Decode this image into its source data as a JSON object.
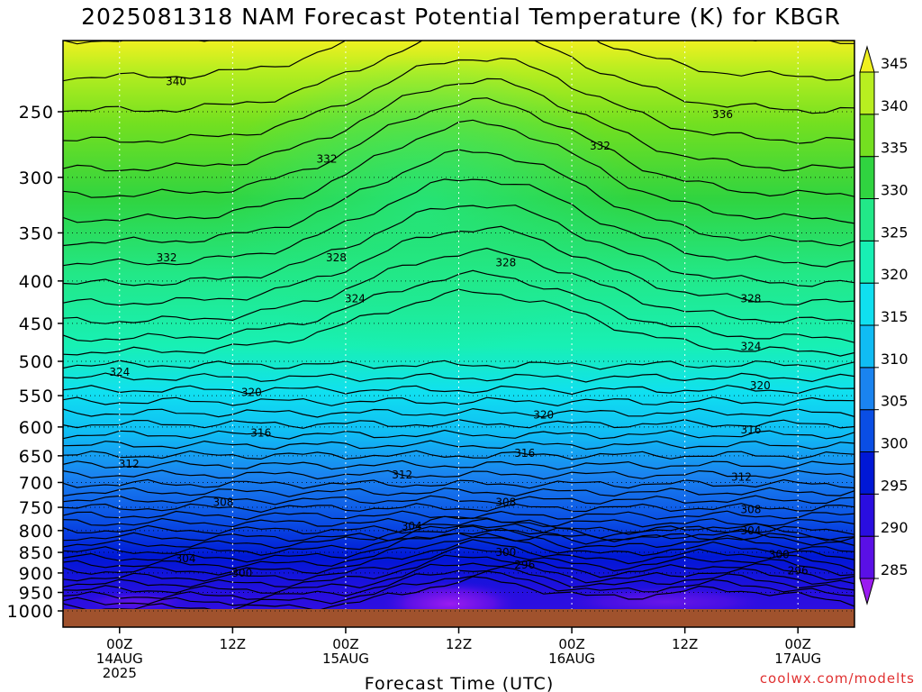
{
  "chart_data": {
    "type": "heatmap",
    "title": "2025081318 NAM Forecast Potential Temperature (K) for KBGR",
    "xlabel": "Forecast Time (UTC)",
    "ylabel": "",
    "y_ticks": [
      250,
      300,
      350,
      400,
      450,
      500,
      550,
      600,
      650,
      700,
      750,
      800,
      850,
      900,
      950,
      1000
    ],
    "x_ticks": [
      {
        "hour": 6,
        "line1": "00Z",
        "line2": "14AUG",
        "line3": "2025"
      },
      {
        "hour": 18,
        "line1": "12Z",
        "line2": "",
        "line3": ""
      },
      {
        "hour": 30,
        "line1": "00Z",
        "line2": "15AUG",
        "line3": ""
      },
      {
        "hour": 42,
        "line1": "12Z",
        "line2": "",
        "line3": ""
      },
      {
        "hour": 54,
        "line1": "00Z",
        "line2": "16AUG",
        "line3": ""
      },
      {
        "hour": 66,
        "line1": "12Z",
        "line2": "",
        "line3": ""
      },
      {
        "hour": 78,
        "line1": "00Z",
        "line2": "17AUG",
        "line3": ""
      }
    ],
    "xlim": [
      0,
      84
    ],
    "ylim": [
      1000,
      200
    ],
    "y_scale": "log-pressure",
    "grid": true,
    "colorbar": {
      "levels": [
        285,
        290,
        295,
        300,
        305,
        310,
        315,
        320,
        325,
        330,
        335,
        340,
        345
      ],
      "labels": [
        "285",
        "290",
        "295",
        "300",
        "305",
        "310",
        "315",
        "320",
        "325",
        "330",
        "335",
        "340",
        "345"
      ],
      "colors": [
        "#9a1cf0",
        "#5a10e6",
        "#2a0ee0",
        "#0018d6",
        "#0a4ee4",
        "#1a84f0",
        "#10bcf4",
        "#10e0f0",
        "#18f0b4",
        "#22e888",
        "#30d440",
        "#74e020",
        "#b8ee20",
        "#f0f020"
      ]
    },
    "contour_labels": [
      {
        "value": "340",
        "hour": 12,
        "pressure": 230
      },
      {
        "value": "336",
        "hour": 70,
        "pressure": 252
      },
      {
        "value": "332",
        "hour": 28,
        "pressure": 285
      },
      {
        "value": "332",
        "hour": 57,
        "pressure": 275
      },
      {
        "value": "332",
        "hour": 11,
        "pressure": 375
      },
      {
        "value": "328",
        "hour": 29,
        "pressure": 375
      },
      {
        "value": "328",
        "hour": 47,
        "pressure": 380
      },
      {
        "value": "328",
        "hour": 73,
        "pressure": 420
      },
      {
        "value": "324",
        "hour": 31,
        "pressure": 420
      },
      {
        "value": "324",
        "hour": 73,
        "pressure": 480
      },
      {
        "value": "324",
        "hour": 6,
        "pressure": 515
      },
      {
        "value": "320",
        "hour": 20,
        "pressure": 545
      },
      {
        "value": "320",
        "hour": 51,
        "pressure": 580
      },
      {
        "value": "320",
        "hour": 74,
        "pressure": 535
      },
      {
        "value": "316",
        "hour": 21,
        "pressure": 610
      },
      {
        "value": "316",
        "hour": 49,
        "pressure": 645
      },
      {
        "value": "316",
        "hour": 73,
        "pressure": 605
      },
      {
        "value": "312",
        "hour": 7,
        "pressure": 665
      },
      {
        "value": "312",
        "hour": 36,
        "pressure": 685
      },
      {
        "value": "312",
        "hour": 72,
        "pressure": 690
      },
      {
        "value": "308",
        "hour": 17,
        "pressure": 740
      },
      {
        "value": "308",
        "hour": 47,
        "pressure": 740
      },
      {
        "value": "308",
        "hour": 73,
        "pressure": 755
      },
      {
        "value": "304",
        "hour": 37,
        "pressure": 790
      },
      {
        "value": "304",
        "hour": 13,
        "pressure": 865
      },
      {
        "value": "304",
        "hour": 73,
        "pressure": 800
      },
      {
        "value": "300",
        "hour": 47,
        "pressure": 850
      },
      {
        "value": "300",
        "hour": 76,
        "pressure": 855
      },
      {
        "value": "300",
        "hour": 19,
        "pressure": 900
      },
      {
        "value": "296",
        "hour": 49,
        "pressure": 880
      },
      {
        "value": "296",
        "hour": 78,
        "pressure": 895
      }
    ]
  },
  "credit": "coolwx.com/modelts"
}
